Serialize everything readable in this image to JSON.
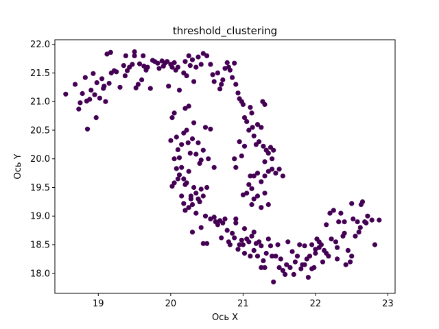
{
  "chart_data": {
    "type": "scatter",
    "title": "threshold_clustering",
    "xlabel": "Ось X",
    "ylabel": "Ось Y",
    "xlim": [
      18.4,
      23.1
    ],
    "ylim": [
      17.65,
      22.08
    ],
    "xticks": [
      19,
      20,
      21,
      22,
      23
    ],
    "yticks": [
      18.0,
      18.5,
      19.0,
      19.5,
      20.0,
      20.5,
      21.0,
      21.5,
      22.0
    ],
    "grid": false,
    "legend": "none",
    "point_color": "#440154",
    "series": [
      {
        "points": [
          [
            18.55,
            21.13
          ],
          [
            18.68,
            21.3
          ],
          [
            18.73,
            20.87
          ],
          [
            18.75,
            20.98
          ],
          [
            18.78,
            21.14
          ],
          [
            18.82,
            21.42
          ],
          [
            18.84,
            21.01
          ],
          [
            18.85,
            20.52
          ],
          [
            18.88,
            21.04
          ],
          [
            18.9,
            21.2
          ],
          [
            18.93,
            21.49
          ],
          [
            18.95,
            21.12
          ],
          [
            18.97,
            20.72
          ],
          [
            18.98,
            21.33
          ],
          [
            19.02,
            21.06
          ],
          [
            19.05,
            21.4
          ],
          [
            19.07,
            21.23
          ],
          [
            19.08,
            21.27
          ],
          [
            19.1,
            21.0
          ],
          [
            19.12,
            21.83
          ],
          [
            19.15,
            21.32
          ],
          [
            19.17,
            21.86
          ],
          [
            19.18,
            21.5
          ],
          [
            19.22,
            21.54
          ],
          [
            19.25,
            21.52
          ],
          [
            19.3,
            21.25
          ],
          [
            19.35,
            21.63
          ],
          [
            19.37,
            21.45
          ],
          [
            19.38,
            21.8
          ],
          [
            19.4,
            21.54
          ],
          [
            19.43,
            21.6
          ],
          [
            19.47,
            21.65
          ],
          [
            19.5,
            21.8
          ],
          [
            19.5,
            21.87
          ],
          [
            19.52,
            21.24
          ],
          [
            19.55,
            21.3
          ],
          [
            19.57,
            21.66
          ],
          [
            19.6,
            21.38
          ],
          [
            19.62,
            21.8
          ],
          [
            19.63,
            21.62
          ],
          [
            19.66,
            21.55
          ],
          [
            19.68,
            21.6
          ],
          [
            19.72,
            21.23
          ],
          [
            19.75,
            21.72
          ],
          [
            19.78,
            21.7
          ],
          [
            19.82,
            21.67
          ],
          [
            19.84,
            21.58
          ],
          [
            19.88,
            21.71
          ],
          [
            19.9,
            21.62
          ],
          [
            19.92,
            21.67
          ],
          [
            19.95,
            21.7
          ],
          [
            19.97,
            21.27
          ],
          [
            20.0,
            21.65
          ],
          [
            20.02,
            21.6
          ],
          [
            20.05,
            21.68
          ],
          [
            20.07,
            21.55
          ],
          [
            20.1,
            21.6
          ],
          [
            20.12,
            21.2
          ],
          [
            20.18,
            21.5
          ],
          [
            20.2,
            21.7
          ],
          [
            20.22,
            21.45
          ],
          [
            20.25,
            21.8
          ],
          [
            20.27,
            21.63
          ],
          [
            20.3,
            21.73
          ],
          [
            20.32,
            21.35
          ],
          [
            20.35,
            21.6
          ],
          [
            20.38,
            21.78
          ],
          [
            20.42,
            21.65
          ],
          [
            20.45,
            21.84
          ],
          [
            20.5,
            21.8
          ],
          [
            20.55,
            21.65
          ],
          [
            20.58,
            21.47
          ],
          [
            20.6,
            21.35
          ],
          [
            20.65,
            21.5
          ],
          [
            20.68,
            21.22
          ],
          [
            20.7,
            21.3
          ],
          [
            20.72,
            21.38
          ],
          [
            20.75,
            21.58
          ],
          [
            20.78,
            21.68
          ],
          [
            20.8,
            21.6
          ],
          [
            20.82,
            21.55
          ],
          [
            20.85,
            21.42
          ],
          [
            20.88,
            21.67
          ],
          [
            20.9,
            21.3
          ],
          [
            20.93,
            21.15
          ],
          [
            20.95,
            21.05
          ],
          [
            20.98,
            21.0
          ],
          [
            21.0,
            20.95
          ],
          [
            21.02,
            20.72
          ],
          [
            21.05,
            20.65
          ],
          [
            21.08,
            20.5
          ],
          [
            21.1,
            20.9
          ],
          [
            21.12,
            20.8
          ],
          [
            21.13,
            20.55
          ],
          [
            21.15,
            20.4
          ],
          [
            21.18,
            20.25
          ],
          [
            21.2,
            20.6
          ],
          [
            21.22,
            20.3
          ],
          [
            21.25,
            20.55
          ],
          [
            21.27,
            21.0
          ],
          [
            21.3,
            20.95
          ],
          [
            21.28,
            20.22
          ],
          [
            21.32,
            20.15
          ],
          [
            21.3,
            19.95
          ],
          [
            21.35,
            20.1
          ],
          [
            21.38,
            20.2
          ],
          [
            21.4,
            20.0
          ],
          [
            21.4,
            19.82
          ],
          [
            21.42,
            20.15
          ],
          [
            21.45,
            19.75
          ],
          [
            21.5,
            19.82
          ],
          [
            21.55,
            19.7
          ],
          [
            21.35,
            19.78
          ],
          [
            21.3,
            19.7
          ],
          [
            21.25,
            19.6
          ],
          [
            21.2,
            19.75
          ],
          [
            21.15,
            19.7
          ],
          [
            21.12,
            19.48
          ],
          [
            21.1,
            19.7
          ],
          [
            21.08,
            19.55
          ],
          [
            21.05,
            19.4
          ],
          [
            21.0,
            19.37
          ],
          [
            21.12,
            19.2
          ],
          [
            21.15,
            19.3
          ],
          [
            21.2,
            19.35
          ],
          [
            21.25,
            19.15
          ],
          [
            21.3,
            19.4
          ],
          [
            21.35,
            19.2
          ],
          [
            20.95,
            20.3
          ],
          [
            20.98,
            20.05
          ],
          [
            21.02,
            20.22
          ],
          [
            20.9,
            19.85
          ],
          [
            20.88,
            20.0
          ],
          [
            20.0,
            20.32
          ],
          [
            20.02,
            20.72
          ],
          [
            20.05,
            20.8
          ],
          [
            20.08,
            20.38
          ],
          [
            20.1,
            20.16
          ],
          [
            20.12,
            20.02
          ],
          [
            20.15,
            20.25
          ],
          [
            20.18,
            20.45
          ],
          [
            20.2,
            20.88
          ],
          [
            20.22,
            20.5
          ],
          [
            20.24,
            20.28
          ],
          [
            20.25,
            20.92
          ],
          [
            20.27,
            20.1
          ],
          [
            20.3,
            20.35
          ],
          [
            20.32,
            20.63
          ],
          [
            20.35,
            20.08
          ],
          [
            20.38,
            20.28
          ],
          [
            20.4,
            19.92
          ],
          [
            20.42,
            19.98
          ],
          [
            20.45,
            20.15
          ],
          [
            20.48,
            20.55
          ],
          [
            20.52,
            20.0
          ],
          [
            20.55,
            20.52
          ],
          [
            20.6,
            19.85
          ],
          [
            20.05,
            20.0
          ],
          [
            20.08,
            19.83
          ],
          [
            20.12,
            19.72
          ],
          [
            20.15,
            19.85
          ],
          [
            20.18,
            19.65
          ],
          [
            20.2,
            19.55
          ],
          [
            20.22,
            19.58
          ],
          [
            20.25,
            19.78
          ],
          [
            20.28,
            19.35
          ],
          [
            20.3,
            19.2
          ],
          [
            20.32,
            19.5
          ],
          [
            20.35,
            19.4
          ],
          [
            20.38,
            19.3
          ],
          [
            20.4,
            19.25
          ],
          [
            20.42,
            19.47
          ],
          [
            20.45,
            19.35
          ],
          [
            20.48,
            19.0
          ],
          [
            20.5,
            19.5
          ],
          [
            20.02,
            19.52
          ],
          [
            20.05,
            19.58
          ],
          [
            20.1,
            19.65
          ],
          [
            20.15,
            19.35
          ],
          [
            20.18,
            19.22
          ],
          [
            20.2,
            19.1
          ],
          [
            20.25,
            19.15
          ],
          [
            20.28,
            19.3
          ],
          [
            20.3,
            18.72
          ],
          [
            20.35,
            19.05
          ],
          [
            20.42,
            18.8
          ],
          [
            20.45,
            18.52
          ],
          [
            20.5,
            18.52
          ],
          [
            20.55,
            18.95
          ],
          [
            20.6,
            18.98
          ],
          [
            20.62,
            18.9
          ],
          [
            20.65,
            18.85
          ],
          [
            20.68,
            18.92
          ],
          [
            20.7,
            18.62
          ],
          [
            20.72,
            18.88
          ],
          [
            20.75,
            18.95
          ],
          [
            20.78,
            18.75
          ],
          [
            20.8,
            18.55
          ],
          [
            20.82,
            18.5
          ],
          [
            20.85,
            18.7
          ],
          [
            20.88,
            18.62
          ],
          [
            20.9,
            18.88
          ],
          [
            20.93,
            18.42
          ],
          [
            20.95,
            18.5
          ],
          [
            20.98,
            18.58
          ],
          [
            21.0,
            18.5
          ],
          [
            21.02,
            18.35
          ],
          [
            21.05,
            18.6
          ],
          [
            21.08,
            18.55
          ],
          [
            21.1,
            18.3
          ],
          [
            21.12,
            18.65
          ],
          [
            21.15,
            18.72
          ],
          [
            21.18,
            18.52
          ],
          [
            21.2,
            18.3
          ],
          [
            21.22,
            18.55
          ],
          [
            21.25,
            18.48
          ],
          [
            21.28,
            18.22
          ],
          [
            21.3,
            18.1
          ],
          [
            21.32,
            18.35
          ],
          [
            21.35,
            18.6
          ],
          [
            21.38,
            18.48
          ],
          [
            21.4,
            18.3
          ],
          [
            21.42,
            17.85
          ],
          [
            21.45,
            18.3
          ],
          [
            21.48,
            18.5
          ],
          [
            21.5,
            18.1
          ],
          [
            21.52,
            18.25
          ],
          [
            21.55,
            18.05
          ],
          [
            21.6,
            18.15
          ],
          [
            21.62,
            18.55
          ],
          [
            21.65,
            18.1
          ],
          [
            21.68,
            18.38
          ],
          [
            21.7,
            17.98
          ],
          [
            21.72,
            18.2
          ],
          [
            21.75,
            18.3
          ],
          [
            21.78,
            18.5
          ],
          [
            21.8,
            18.08
          ],
          [
            21.82,
            18.15
          ],
          [
            21.85,
            18.48
          ],
          [
            21.88,
            18.25
          ],
          [
            21.9,
            17.93
          ],
          [
            21.92,
            18.3
          ],
          [
            21.95,
            18.5
          ],
          [
            21.98,
            18.1
          ],
          [
            22.0,
            18.35
          ],
          [
            22.02,
            18.6
          ],
          [
            22.05,
            18.45
          ],
          [
            22.08,
            18.5
          ],
          [
            22.1,
            18.2
          ],
          [
            22.12,
            18.4
          ],
          [
            22.15,
            18.85
          ],
          [
            22.18,
            18.3
          ],
          [
            22.2,
            19.05
          ],
          [
            22.22,
            18.6
          ],
          [
            22.25,
            19.1
          ],
          [
            22.28,
            18.55
          ],
          [
            22.3,
            18.25
          ],
          [
            22.32,
            18.9
          ],
          [
            22.35,
            19.05
          ],
          [
            22.38,
            18.65
          ],
          [
            22.4,
            18.7
          ],
          [
            22.42,
            18.15
          ],
          [
            22.45,
            18.4
          ],
          [
            22.48,
            18.2
          ],
          [
            22.5,
            18.3
          ],
          [
            22.5,
            19.22
          ],
          [
            22.52,
            18.95
          ],
          [
            22.55,
            18.65
          ],
          [
            22.58,
            18.9
          ],
          [
            22.6,
            18.72
          ],
          [
            22.62,
            18.8
          ],
          [
            22.63,
            19.2
          ],
          [
            22.65,
            19.25
          ],
          [
            22.68,
            18.9
          ],
          [
            22.7,
            18.88
          ],
          [
            22.72,
            19.0
          ],
          [
            22.78,
            18.93
          ],
          [
            22.82,
            18.5
          ],
          [
            22.88,
            18.93
          ],
          [
            21.02,
            18.78
          ],
          [
            20.9,
            18.95
          ],
          [
            21.15,
            18.4
          ],
          [
            21.25,
            18.1
          ],
          [
            21.58,
            17.98
          ],
          [
            21.85,
            18.15
          ],
          [
            22.0,
            18.42
          ],
          [
            22.05,
            18.55
          ],
          [
            22.3,
            18.45
          ],
          [
            21.95,
            18.08
          ],
          [
            22.15,
            18.35
          ],
          [
            22.4,
            18.9
          ]
        ]
      }
    ]
  }
}
